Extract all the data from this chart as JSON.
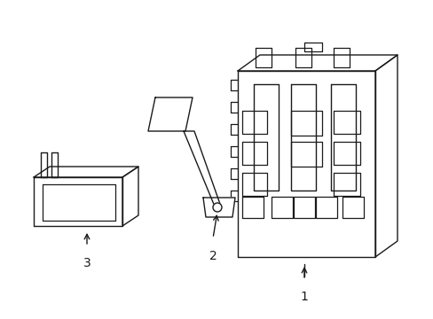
{
  "bg_color": "#ffffff",
  "line_color": "#1a1a1a",
  "line_width": 1.0,
  "label_fontsize": 10,
  "components": {
    "junction_block": {
      "label": "1"
    },
    "bracket": {
      "label": "2"
    },
    "small_block": {
      "label": "3"
    }
  }
}
